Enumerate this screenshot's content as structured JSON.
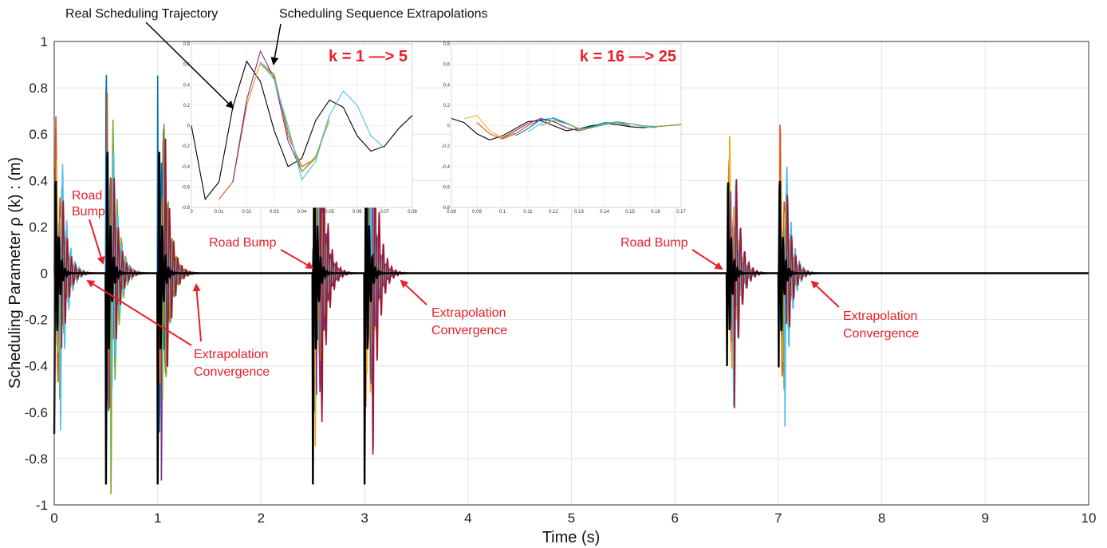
{
  "chart_data": {
    "type": "line",
    "xlabel": "Time (s)",
    "ylabel": "Scheduling Parameter  ρ (k) : (m)",
    "xlim": [
      0,
      10
    ],
    "ylim": [
      -1,
      1
    ],
    "x_ticks": [
      "0",
      "1",
      "2",
      "3",
      "4",
      "5",
      "6",
      "7",
      "8",
      "9",
      "10"
    ],
    "y_ticks": [
      "1",
      "0.8",
      "0.6",
      "0.4",
      "0.2",
      "0",
      "-0.2",
      "-0.4",
      "-0.6",
      "-0.8",
      "-1"
    ],
    "grid": true,
    "series_colors": [
      "#0072bd",
      "#d95319",
      "#edb120",
      "#7e2f8e",
      "#77ac30",
      "#4dbeee",
      "#a2142f"
    ],
    "real_trajectory_color": "#000000",
    "bump_events": [
      {
        "t": 0.0,
        "amp": 0.73
      },
      {
        "t": 0.5,
        "amp": 0.96
      },
      {
        "t": 1.0,
        "amp": 0.96
      },
      {
        "t": 2.5,
        "amp": 0.96
      },
      {
        "t": 3.0,
        "amp": 0.96
      },
      {
        "t": 6.5,
        "amp": 0.72
      },
      {
        "t": 7.0,
        "amp": 0.73
      }
    ],
    "annotations": {
      "road_bump_1": [
        "Road",
        "Bump"
      ],
      "road_bump_2": "Road Bump",
      "road_bump_3": "Road Bump",
      "convergence_1": [
        "Extrapolation",
        "Convergence"
      ],
      "convergence_2": [
        "Extrapolation",
        "Convergence"
      ],
      "convergence_3": [
        "Extrapolation",
        "Convergence"
      ],
      "real_trajectory": "Real Scheduling Trajectory",
      "extrapolations": "Scheduling Sequence Extrapolations"
    },
    "insets": [
      {
        "title": "k = 1 —> 5",
        "xlim": [
          0,
          0.08
        ],
        "ylim": [
          -0.8,
          0.8
        ],
        "x_ticks": [
          "0",
          "0.01",
          "0.02",
          "0.03",
          "0.04",
          "0.05",
          "0.06",
          "0.07",
          "0.08"
        ],
        "y_ticks": [
          "0.8",
          "0.6",
          "0.4",
          "0.2",
          "0",
          "-0.2",
          "-0.4",
          "-0.6",
          "-0.8"
        ],
        "series": [
          {
            "color": "#000000",
            "x": [
              0,
              0.005,
              0.01,
              0.015,
              0.02,
              0.025,
              0.03,
              0.035,
              0.04,
              0.045,
              0.05,
              0.055,
              0.06,
              0.065,
              0.07,
              0.075,
              0.08
            ],
            "y": [
              0,
              -0.72,
              -0.55,
              0.18,
              0.63,
              0.43,
              -0.05,
              -0.4,
              -0.32,
              0.05,
              0.25,
              0.18,
              -0.1,
              -0.25,
              -0.2,
              -0.03,
              0.1
            ]
          },
          {
            "color": "#d95319",
            "x": [
              0.01,
              0.015,
              0.02,
              0.025,
              0.03,
              0.035,
              0.04,
              0.045,
              0.05
            ],
            "y": [
              -0.72,
              -0.55,
              0.2,
              0.62,
              0.5,
              -0.1,
              -0.4,
              -0.32,
              0.1
            ]
          },
          {
            "color": "#7e2f8e",
            "x": [
              0.015,
              0.02,
              0.025,
              0.03,
              0.035,
              0.04,
              0.045,
              0.05
            ],
            "y": [
              -0.55,
              0.25,
              0.73,
              0.46,
              -0.15,
              -0.45,
              -0.3,
              0.05
            ]
          },
          {
            "color": "#edb120",
            "x": [
              0.02,
              0.025,
              0.03,
              0.035,
              0.04,
              0.045,
              0.05
            ],
            "y": [
              0.2,
              0.62,
              0.48,
              -0.05,
              -0.45,
              -0.3,
              0.05
            ]
          },
          {
            "color": "#77ac30",
            "x": [
              0.025,
              0.03,
              0.035,
              0.04,
              0.045,
              0.05
            ],
            "y": [
              0.6,
              0.48,
              -0.05,
              -0.45,
              -0.32,
              0.1
            ]
          },
          {
            "color": "#4dbeee",
            "x": [
              0.025,
              0.03,
              0.035,
              0.04,
              0.045,
              0.05,
              0.055,
              0.06,
              0.065,
              0.07
            ],
            "y": [
              0.62,
              0.45,
              0.0,
              -0.53,
              -0.35,
              0.1,
              0.34,
              0.2,
              -0.1,
              -0.22
            ]
          }
        ]
      },
      {
        "title": "k = 16 —> 25",
        "xlim": [
          0.08,
          0.17
        ],
        "ylim": [
          -0.8,
          0.8
        ],
        "x_ticks": [
          "0.08",
          "0.09",
          "0.1",
          "0.11",
          "0.12",
          "0.13",
          "0.14",
          "0.15",
          "0.16",
          "0.17"
        ],
        "y_ticks": [
          "0.8",
          "0.6",
          "0.4",
          "0.2",
          "0",
          "-0.2",
          "-0.4",
          "-0.6",
          "-0.8"
        ],
        "series": [
          {
            "color": "#000000",
            "x": [
              0.08,
              0.085,
              0.09,
              0.095,
              0.1,
              0.105,
              0.11,
              0.115,
              0.12,
              0.125,
              0.13,
              0.135,
              0.14,
              0.145,
              0.15,
              0.155,
              0.16,
              0.165,
              0.17
            ],
            "y": [
              0.07,
              0.03,
              -0.08,
              -0.14,
              -0.1,
              -0.03,
              0.04,
              0.05,
              0.0,
              -0.05,
              -0.03,
              0.0,
              0.02,
              0.01,
              -0.01,
              -0.02,
              -0.01,
              0.0,
              0.01
            ]
          },
          {
            "color": "#edb120",
            "x": [
              0.085,
              0.09,
              0.095,
              0.1,
              0.105
            ],
            "y": [
              0.07,
              0.1,
              -0.05,
              -0.12,
              -0.07
            ]
          },
          {
            "color": "#d95319",
            "x": [
              0.09,
              0.095,
              0.1,
              0.105,
              0.11,
              0.115,
              0.12,
              0.125,
              0.13,
              0.135
            ],
            "y": [
              0.03,
              -0.08,
              -0.13,
              -0.08,
              0.0,
              0.06,
              0.04,
              -0.02,
              -0.05,
              -0.02
            ]
          },
          {
            "color": "#7e2f8e",
            "x": [
              0.1,
              0.105,
              0.11,
              0.115,
              0.12,
              0.125,
              0.13
            ],
            "y": [
              -0.12,
              -0.05,
              0.02,
              0.07,
              0.04,
              -0.02,
              -0.05
            ]
          },
          {
            "color": "#0072bd",
            "x": [
              0.105,
              0.11,
              0.115,
              0.12,
              0.125,
              0.13,
              0.135,
              0.14,
              0.145,
              0.15
            ],
            "y": [
              -0.1,
              -0.03,
              0.06,
              0.07,
              0.02,
              -0.03,
              -0.01,
              0.03,
              0.03,
              0.0
            ]
          },
          {
            "color": "#4dbeee",
            "x": [
              0.11,
              0.115,
              0.12,
              0.125,
              0.13,
              0.135,
              0.14,
              0.145,
              0.15,
              0.155,
              0.16
            ],
            "y": [
              -0.06,
              0.02,
              0.08,
              0.03,
              -0.04,
              -0.02,
              0.02,
              0.04,
              0.02,
              -0.01,
              -0.02
            ]
          },
          {
            "color": "#77ac30",
            "x": [
              0.115,
              0.12,
              0.125,
              0.13,
              0.135,
              0.14,
              0.145,
              0.15,
              0.155,
              0.16,
              0.165,
              0.17
            ],
            "y": [
              0.0,
              0.05,
              0.02,
              -0.03,
              -0.02,
              0.01,
              0.03,
              0.02,
              0.0,
              -0.01,
              0.0,
              0.01
            ]
          }
        ]
      }
    ]
  }
}
